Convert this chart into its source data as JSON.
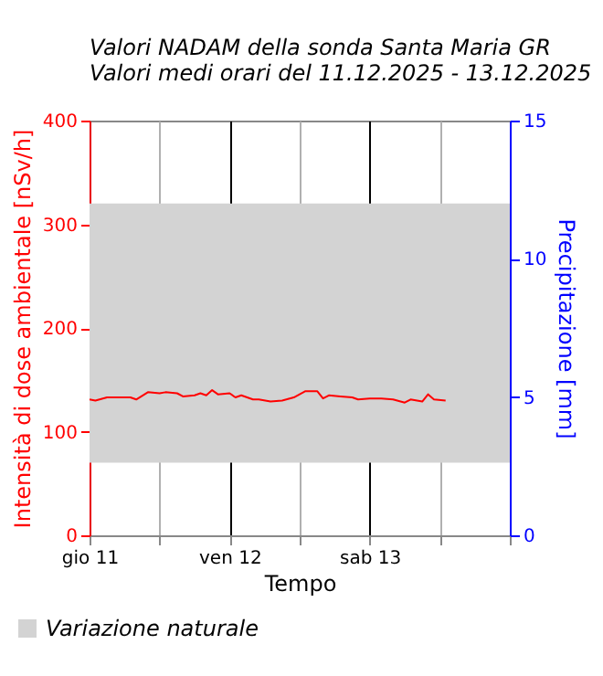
{
  "chart_data": {
    "type": "line",
    "title": [
      "Valori NADAM della sonda Santa Maria GR",
      "Valori medi orari del 11.12.2025 - 13.12.2025"
    ],
    "xlabel": "Tempo",
    "ylabel": "Intensità di dose ambientale [nSv/h]",
    "y2label": "Precipitazione [mm]",
    "x": [
      "2025-12-11T00:00",
      "2025-12-11T01:00",
      "2025-12-11T03:00",
      "2025-12-11T04:00",
      "2025-12-11T07:00",
      "2025-12-11T08:00",
      "2025-12-11T10:00",
      "2025-12-11T12:00",
      "2025-12-11T13:00",
      "2025-12-11T15:00",
      "2025-12-11T16:00",
      "2025-12-11T18:00",
      "2025-12-11T19:00",
      "2025-12-11T20:00",
      "2025-12-11T21:00",
      "2025-12-11T22:00",
      "2025-12-12T00:00",
      "2025-12-12T01:00",
      "2025-12-12T02:00",
      "2025-12-12T04:00",
      "2025-12-12T05:00",
      "2025-12-12T07:00",
      "2025-12-12T09:00",
      "2025-12-12T11:00",
      "2025-12-12T13:00",
      "2025-12-12T15:00",
      "2025-12-12T16:00",
      "2025-12-12T17:00",
      "2025-12-12T19:00",
      "2025-12-12T21:00",
      "2025-12-12T22:00",
      "2025-12-13T00:00",
      "2025-12-13T02:00",
      "2025-12-13T04:00",
      "2025-12-13T06:00",
      "2025-12-13T07:00",
      "2025-12-13T09:00",
      "2025-12-13T10:00",
      "2025-12-13T11:00",
      "2025-12-13T13:00"
    ],
    "series": [
      {
        "color": "#ff0000",
        "values": [
          131,
          130,
          133,
          133,
          133,
          131,
          138,
          137,
          138,
          137,
          134,
          135,
          137,
          135,
          140,
          136,
          137,
          133,
          135,
          131,
          131,
          129,
          130,
          133,
          139,
          139,
          132,
          135,
          134,
          133,
          131,
          132,
          132,
          131,
          128,
          131,
          129,
          136,
          131,
          130
        ]
      }
    ],
    "xlim": [
      "2025-12-11T00:00",
      "2025-12-14T00:00"
    ],
    "xticks": [
      {
        "value": "2025-12-11T00:00",
        "label": "gio 11"
      },
      {
        "value": "2025-12-11T12:00",
        "label": null
      },
      {
        "value": "2025-12-12T00:00",
        "label": "ven 12"
      },
      {
        "value": "2025-12-12T12:00",
        "label": null
      },
      {
        "value": "2025-12-13T00:00",
        "label": "sab 13"
      },
      {
        "value": "2025-12-13T12:00",
        "label": null
      },
      {
        "value": "2025-12-14T00:00",
        "label": null
      }
    ],
    "ylim": [
      0,
      400
    ],
    "yticks": [
      0,
      100,
      200,
      300,
      400
    ],
    "y2lim": [
      0,
      15
    ],
    "y2ticks": [
      0,
      5,
      10,
      15
    ],
    "bands": [
      {
        "axis": "y",
        "from": 70,
        "to": 320,
        "label": "Variazione naturale",
        "color": "#d3d3d3"
      }
    ],
    "grid": "x",
    "legend": "bottom left"
  }
}
